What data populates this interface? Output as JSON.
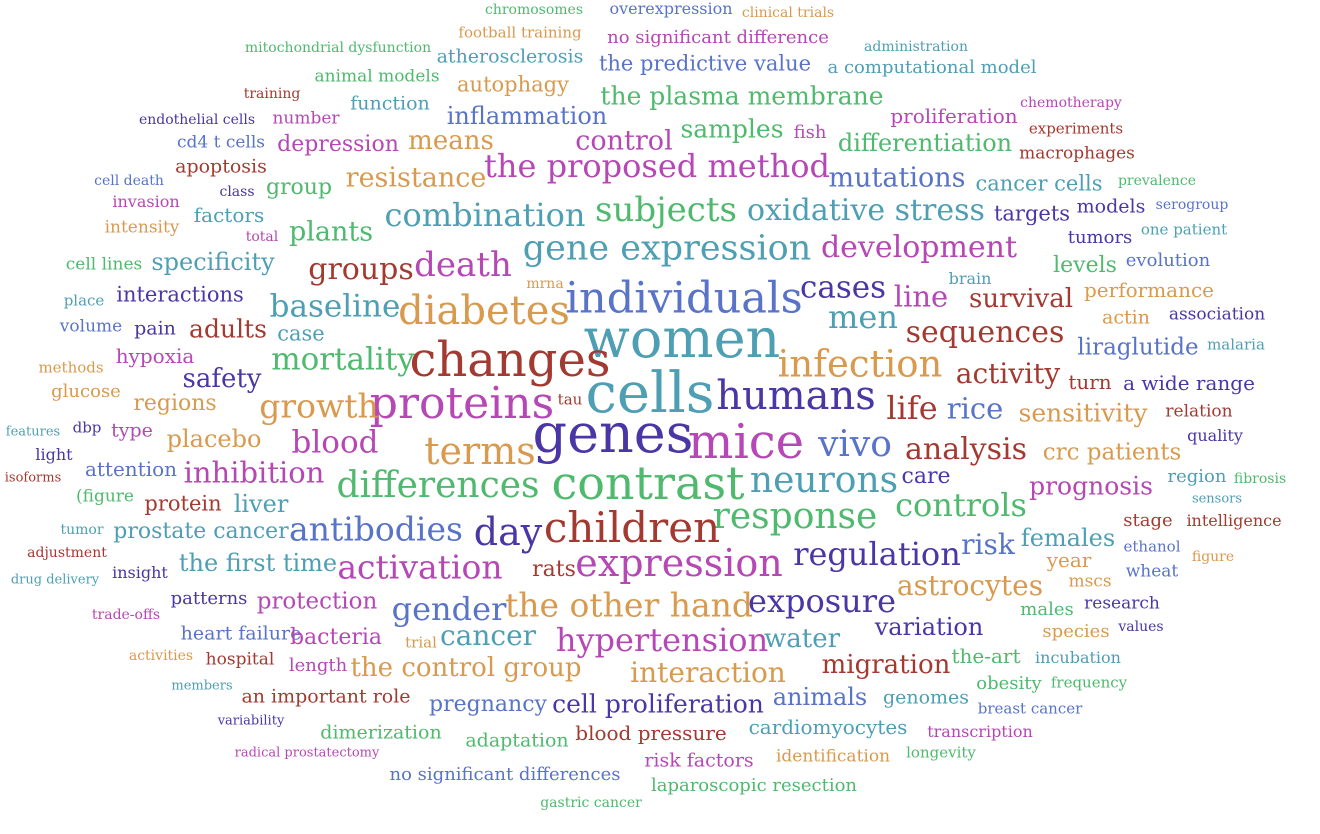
{
  "words": [
    {
      "t": "chromosomes",
      "c": "c8"
    },
    {
      "t": "overexpression",
      "c": "c7"
    },
    {
      "t": "clinical trials",
      "c": "c2"
    },
    {
      "t": "football training",
      "c": "c2"
    },
    {
      "t": "no significant difference",
      "c": "c3"
    },
    {
      "t": "mitochondrial dysfunction",
      "c": "c8"
    },
    {
      "t": "atherosclerosis",
      "c": "c1"
    },
    {
      "t": "administration",
      "c": "c1"
    },
    {
      "t": "the predictive value",
      "c": "c7"
    },
    {
      "t": "a computational model",
      "c": "c1"
    },
    {
      "t": "animal models",
      "c": "c8"
    },
    {
      "t": "autophagy",
      "c": "c2"
    },
    {
      "t": "training",
      "c": "c6"
    },
    {
      "t": "function",
      "c": "c1"
    },
    {
      "t": "the plasma membrane",
      "c": "c8"
    },
    {
      "t": "chemotherapy",
      "c": "c3"
    },
    {
      "t": "inflammation",
      "c": "c7"
    },
    {
      "t": "proliferation",
      "c": "c3"
    },
    {
      "t": "endothelial cells",
      "c": "c5"
    },
    {
      "t": "number",
      "c": "c3"
    },
    {
      "t": "experiments",
      "c": "c6"
    },
    {
      "t": "samples",
      "c": "c8"
    },
    {
      "t": "means",
      "c": "c2"
    },
    {
      "t": "control",
      "c": "c3"
    },
    {
      "t": "fish",
      "c": "c3"
    },
    {
      "t": "cd4 t cells",
      "c": "c7"
    },
    {
      "t": "depression",
      "c": "c3"
    },
    {
      "t": "differentiation",
      "c": "c8"
    },
    {
      "t": "macrophages",
      "c": "c6"
    },
    {
      "t": "apoptosis",
      "c": "c6"
    },
    {
      "t": "the proposed method",
      "c": "c3"
    },
    {
      "t": "cell death",
      "c": "c7"
    },
    {
      "t": "resistance",
      "c": "c2"
    },
    {
      "t": "mutations",
      "c": "c7"
    },
    {
      "t": "cancer cells",
      "c": "c1"
    },
    {
      "t": "prevalence",
      "c": "c8"
    },
    {
      "t": "class",
      "c": "c5"
    },
    {
      "t": "group",
      "c": "c8"
    },
    {
      "t": "invasion",
      "c": "c3"
    },
    {
      "t": "serogroup",
      "c": "c7"
    },
    {
      "t": "subjects",
      "c": "c8"
    },
    {
      "t": "models",
      "c": "c5"
    },
    {
      "t": "factors",
      "c": "c1"
    },
    {
      "t": "combination",
      "c": "c1"
    },
    {
      "t": "oxidative stress",
      "c": "c1"
    },
    {
      "t": "targets",
      "c": "c5"
    },
    {
      "t": "intensity",
      "c": "c2"
    },
    {
      "t": "one patient",
      "c": "c1"
    },
    {
      "t": "total",
      "c": "c3"
    },
    {
      "t": "plants",
      "c": "c8"
    },
    {
      "t": "tumors",
      "c": "c5"
    },
    {
      "t": "gene expression",
      "c": "c1"
    },
    {
      "t": "development",
      "c": "c3"
    },
    {
      "t": "brain",
      "c": "c1"
    },
    {
      "t": "cell lines",
      "c": "c8"
    },
    {
      "t": "specificity",
      "c": "c1"
    },
    {
      "t": "death",
      "c": "c3"
    },
    {
      "t": "groups",
      "c": "c6"
    },
    {
      "t": "levels",
      "c": "c8"
    },
    {
      "t": "evolution",
      "c": "c7"
    },
    {
      "t": "mrna",
      "c": "c2"
    },
    {
      "t": "performance",
      "c": "c2"
    },
    {
      "t": "place",
      "c": "c1"
    },
    {
      "t": "interactions",
      "c": "c5"
    },
    {
      "t": "cases",
      "c": "c5"
    },
    {
      "t": "individuals",
      "c": "c7"
    },
    {
      "t": "survival",
      "c": "c6"
    },
    {
      "t": "baseline",
      "c": "c1"
    },
    {
      "t": "diabetes",
      "c": "c2"
    },
    {
      "t": "line",
      "c": "c3"
    },
    {
      "t": "volume",
      "c": "c7"
    },
    {
      "t": "men",
      "c": "c1"
    },
    {
      "t": "actin",
      "c": "c2"
    },
    {
      "t": "association",
      "c": "c5"
    },
    {
      "t": "pain",
      "c": "c5"
    },
    {
      "t": "adults",
      "c": "c6"
    },
    {
      "t": "case",
      "c": "c1"
    },
    {
      "t": "sequences",
      "c": "c6"
    },
    {
      "t": "women",
      "c": "c1"
    },
    {
      "t": "liraglutide",
      "c": "c7"
    },
    {
      "t": "malaria",
      "c": "c1"
    },
    {
      "t": "mortality",
      "c": "c8"
    },
    {
      "t": "hypoxia",
      "c": "c3"
    },
    {
      "t": "changes",
      "c": "c6"
    },
    {
      "t": "infection",
      "c": "c2"
    },
    {
      "t": "methods",
      "c": "c2"
    },
    {
      "t": "activity",
      "c": "c6"
    },
    {
      "t": "safety",
      "c": "c5"
    },
    {
      "t": "turn",
      "c": "c6"
    },
    {
      "t": "a wide range",
      "c": "c5"
    },
    {
      "t": "glucose",
      "c": "c2"
    },
    {
      "t": "cells",
      "c": "c1"
    },
    {
      "t": "humans",
      "c": "c5"
    },
    {
      "t": "proteins",
      "c": "c3"
    },
    {
      "t": "regions",
      "c": "c2"
    },
    {
      "t": "growth",
      "c": "c2"
    },
    {
      "t": "rice",
      "c": "c7"
    },
    {
      "t": "life",
      "c": "c6"
    },
    {
      "t": "tau",
      "c": "c6"
    },
    {
      "t": "sensitivity",
      "c": "c2"
    },
    {
      "t": "relation",
      "c": "c6"
    },
    {
      "t": "features",
      "c": "c1"
    },
    {
      "t": "dbp",
      "c": "c5"
    },
    {
      "t": "type",
      "c": "c3"
    },
    {
      "t": "quality",
      "c": "c5"
    },
    {
      "t": "placebo",
      "c": "c2"
    },
    {
      "t": "genes",
      "c": "c5"
    },
    {
      "t": "light",
      "c": "c5"
    },
    {
      "t": "blood",
      "c": "c3"
    },
    {
      "t": "mice",
      "c": "c3"
    },
    {
      "t": "vivo",
      "c": "c7"
    },
    {
      "t": "analysis",
      "c": "c6"
    },
    {
      "t": "terms",
      "c": "c2"
    },
    {
      "t": "crc patients",
      "c": "c2"
    },
    {
      "t": "attention",
      "c": "c7"
    },
    {
      "t": "inhibition",
      "c": "c3"
    },
    {
      "t": "isoforms",
      "c": "c6"
    },
    {
      "t": "region",
      "c": "c1"
    },
    {
      "t": "fibrosis",
      "c": "c8"
    },
    {
      "t": "care",
      "c": "c5"
    },
    {
      "t": "contrast",
      "c": "c8"
    },
    {
      "t": "neurons",
      "c": "c1"
    },
    {
      "t": "differences",
      "c": "c8"
    },
    {
      "t": "prognosis",
      "c": "c3"
    },
    {
      "t": "(figure",
      "c": "c8"
    },
    {
      "t": "sensors",
      "c": "c1"
    },
    {
      "t": "protein",
      "c": "c6"
    },
    {
      "t": "liver",
      "c": "c1"
    },
    {
      "t": "controls",
      "c": "c8"
    },
    {
      "t": "response",
      "c": "c8"
    },
    {
      "t": "tumor",
      "c": "c1"
    },
    {
      "t": "stage",
      "c": "c6"
    },
    {
      "t": "intelligence",
      "c": "c6"
    },
    {
      "t": "prostate cancer",
      "c": "c1"
    },
    {
      "t": "antibodies",
      "c": "c7"
    },
    {
      "t": "day",
      "c": "c5"
    },
    {
      "t": "children",
      "c": "c6"
    },
    {
      "t": "females",
      "c": "c1"
    },
    {
      "t": "adjustment",
      "c": "c6"
    },
    {
      "t": "risk",
      "c": "c7"
    },
    {
      "t": "ethanol",
      "c": "c7"
    },
    {
      "t": "regulation",
      "c": "c5"
    },
    {
      "t": "drug delivery",
      "c": "c1"
    },
    {
      "t": "the first time",
      "c": "c1"
    },
    {
      "t": "insight",
      "c": "c5"
    },
    {
      "t": "activation",
      "c": "c3"
    },
    {
      "t": "rats",
      "c": "c6"
    },
    {
      "t": "expression",
      "c": "c3"
    },
    {
      "t": "year",
      "c": "c2"
    },
    {
      "t": "figure",
      "c": "c2"
    },
    {
      "t": "wheat",
      "c": "c7"
    },
    {
      "t": "astrocytes",
      "c": "c2"
    },
    {
      "t": "mscs",
      "c": "c2"
    },
    {
      "t": "patterns",
      "c": "c5"
    },
    {
      "t": "trade-offs",
      "c": "c3"
    },
    {
      "t": "protection",
      "c": "c3"
    },
    {
      "t": "gender",
      "c": "c7"
    },
    {
      "t": "the other hand",
      "c": "c2"
    },
    {
      "t": "exposure",
      "c": "c5"
    },
    {
      "t": "males",
      "c": "c8"
    },
    {
      "t": "research",
      "c": "c5"
    },
    {
      "t": "heart failure",
      "c": "c7"
    },
    {
      "t": "variation",
      "c": "c5"
    },
    {
      "t": "values",
      "c": "c5"
    },
    {
      "t": "species",
      "c": "c2"
    },
    {
      "t": "bacteria",
      "c": "c3"
    },
    {
      "t": "cancer",
      "c": "c1"
    },
    {
      "t": "trial",
      "c": "c2"
    },
    {
      "t": "hypertension",
      "c": "c3"
    },
    {
      "t": "water",
      "c": "c1"
    },
    {
      "t": "activities",
      "c": "c2"
    },
    {
      "t": "hospital",
      "c": "c6"
    },
    {
      "t": "the-art",
      "c": "c8"
    },
    {
      "t": "incubation",
      "c": "c1"
    },
    {
      "t": "length",
      "c": "c3"
    },
    {
      "t": "the control group",
      "c": "c2"
    },
    {
      "t": "migration",
      "c": "c6"
    },
    {
      "t": "interaction",
      "c": "c2"
    },
    {
      "t": "members",
      "c": "c1"
    },
    {
      "t": "obesity",
      "c": "c8"
    },
    {
      "t": "frequency",
      "c": "c8"
    },
    {
      "t": "an important role",
      "c": "c6"
    },
    {
      "t": "animals",
      "c": "c7"
    },
    {
      "t": "genomes",
      "c": "c1"
    },
    {
      "t": "pregnancy",
      "c": "c7"
    },
    {
      "t": "cell proliferation",
      "c": "c5"
    },
    {
      "t": "breast cancer",
      "c": "c7"
    },
    {
      "t": "variability",
      "c": "c5"
    },
    {
      "t": "cardiomyocytes",
      "c": "c1"
    },
    {
      "t": "dimerization",
      "c": "c8"
    },
    {
      "t": "transcription",
      "c": "c3"
    },
    {
      "t": "adaptation",
      "c": "c8"
    },
    {
      "t": "blood pressure",
      "c": "c6"
    },
    {
      "t": "radical prostatectomy",
      "c": "c3"
    },
    {
      "t": "longevity",
      "c": "c8"
    },
    {
      "t": "identification",
      "c": "c2"
    },
    {
      "t": "risk factors",
      "c": "c3"
    },
    {
      "t": "no significant differences",
      "c": "c7"
    },
    {
      "t": "laparoscopic resection",
      "c": "c8"
    },
    {
      "t": "gastric cancer",
      "c": "c8"
    }
  ]
}
